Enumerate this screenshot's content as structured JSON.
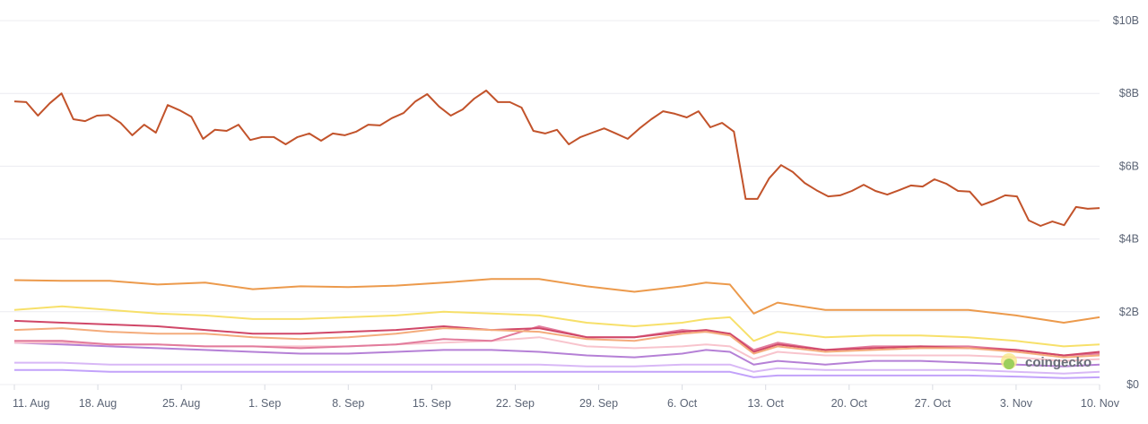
{
  "chart_data": {
    "type": "line",
    "title": "",
    "xlabel": "",
    "ylabel": "",
    "ylim": [
      0,
      10
    ],
    "y_unit": "billion USD",
    "y_ticks": [
      {
        "value": 0,
        "label": "$0"
      },
      {
        "value": 2,
        "label": "$2B"
      },
      {
        "value": 4,
        "label": "$4B"
      },
      {
        "value": 6,
        "label": "$6B"
      },
      {
        "value": 8,
        "label": "$8B"
      },
      {
        "value": 10,
        "label": "$10B"
      }
    ],
    "x_range_days": [
      0,
      91
    ],
    "x_ticks": [
      {
        "day": 0,
        "label": "11. Aug"
      },
      {
        "day": 7,
        "label": "18. Aug"
      },
      {
        "day": 14,
        "label": "25. Aug"
      },
      {
        "day": 21,
        "label": "1. Sep"
      },
      {
        "day": 28,
        "label": "8. Sep"
      },
      {
        "day": 35,
        "label": "15. Sep"
      },
      {
        "day": 42,
        "label": "22. Sep"
      },
      {
        "day": 49,
        "label": "29. Sep"
      },
      {
        "day": 56,
        "label": "6. Oct"
      },
      {
        "day": 63,
        "label": "13. Oct"
      },
      {
        "day": 70,
        "label": "20. Oct"
      },
      {
        "day": 77,
        "label": "27. Oct"
      },
      {
        "day": 84,
        "label": "3. Nov"
      },
      {
        "day": 91,
        "label": "10. Nov"
      }
    ],
    "grid": true,
    "watermark": "coingecko",
    "sparse_x_days": [
      0,
      4,
      8,
      12,
      16,
      20,
      24,
      28,
      32,
      36,
      40,
      44,
      48,
      52,
      56,
      58,
      60,
      62,
      64,
      68,
      72,
      76,
      80,
      84,
      88,
      91
    ],
    "series": [
      {
        "color": "#c2532b",
        "dense": true,
        "values": [
          7.78,
          7.76,
          7.39,
          7.73,
          8.0,
          7.29,
          7.24,
          7.39,
          7.41,
          7.19,
          6.85,
          7.14,
          6.92,
          7.68,
          7.54,
          7.36,
          6.75,
          7.0,
          6.97,
          7.14,
          6.72,
          6.8,
          6.8,
          6.6,
          6.8,
          6.9,
          6.7,
          6.9,
          6.85,
          6.95,
          7.14,
          7.12,
          7.32,
          7.46,
          7.78,
          7.98,
          7.64,
          7.39,
          7.56,
          7.86,
          8.08,
          7.76,
          7.76,
          7.61,
          6.97,
          6.9,
          7.0,
          6.6,
          6.8,
          6.92,
          7.04,
          6.9,
          6.75,
          7.04,
          7.29,
          7.51,
          7.44,
          7.34,
          7.51,
          7.07,
          7.19,
          6.95,
          5.1,
          5.1,
          5.67,
          6.03,
          5.84,
          5.54,
          5.34,
          5.17,
          5.2,
          5.32,
          5.49,
          5.32,
          5.22,
          5.34,
          5.47,
          5.44,
          5.64,
          5.52,
          5.32,
          5.3,
          4.93,
          5.05,
          5.2,
          5.17,
          4.51,
          4.36,
          4.48,
          4.38,
          4.88,
          4.83,
          4.85
        ]
      },
      {
        "color": "#ec9a4c",
        "values": [
          2.87,
          2.85,
          2.85,
          2.75,
          2.8,
          2.62,
          2.7,
          2.68,
          2.72,
          2.8,
          2.9,
          2.9,
          2.7,
          2.55,
          2.7,
          2.8,
          2.75,
          1.95,
          2.25,
          2.05,
          2.05,
          2.05,
          2.05,
          1.9,
          1.7,
          1.85
        ]
      },
      {
        "color": "#f7e06a",
        "values": [
          2.05,
          2.15,
          2.05,
          1.95,
          1.9,
          1.8,
          1.8,
          1.85,
          1.9,
          2.0,
          1.95,
          1.9,
          1.7,
          1.6,
          1.7,
          1.8,
          1.85,
          1.2,
          1.45,
          1.3,
          1.35,
          1.35,
          1.3,
          1.2,
          1.05,
          1.1
        ]
      },
      {
        "color": "#f4ac7c",
        "values": [
          1.5,
          1.55,
          1.45,
          1.4,
          1.4,
          1.3,
          1.25,
          1.3,
          1.4,
          1.55,
          1.5,
          1.45,
          1.25,
          1.2,
          1.4,
          1.45,
          1.35,
          0.85,
          1.05,
          0.9,
          0.95,
          1.0,
          1.0,
          0.9,
          0.75,
          0.8
        ]
      },
      {
        "color": "#d04768",
        "values": [
          1.75,
          1.7,
          1.65,
          1.6,
          1.5,
          1.4,
          1.4,
          1.45,
          1.5,
          1.6,
          1.5,
          1.55,
          1.3,
          1.3,
          1.45,
          1.5,
          1.4,
          0.9,
          1.1,
          0.95,
          1.0,
          1.05,
          1.0,
          0.95,
          0.8,
          0.9
        ]
      },
      {
        "color": "#e27b9c",
        "values": [
          1.2,
          1.2,
          1.1,
          1.1,
          1.05,
          1.05,
          1.0,
          1.05,
          1.1,
          1.25,
          1.2,
          1.6,
          1.3,
          1.3,
          1.5,
          1.45,
          1.4,
          0.95,
          1.15,
          0.95,
          1.05,
          1.05,
          1.05,
          0.95,
          0.8,
          0.85
        ]
      },
      {
        "color": "#f8c4cd",
        "values": [
          1.15,
          1.15,
          1.1,
          1.1,
          1.05,
          1.05,
          1.05,
          1.05,
          1.1,
          1.15,
          1.2,
          1.3,
          1.05,
          1.0,
          1.05,
          1.1,
          1.05,
          0.7,
          0.9,
          0.8,
          0.8,
          0.8,
          0.8,
          0.75,
          0.65,
          0.7
        ]
      },
      {
        "color": "#b580d6",
        "values": [
          1.15,
          1.1,
          1.05,
          1.0,
          0.95,
          0.9,
          0.85,
          0.85,
          0.9,
          0.95,
          0.95,
          0.9,
          0.8,
          0.75,
          0.85,
          0.95,
          0.9,
          0.55,
          0.65,
          0.55,
          0.65,
          0.65,
          0.6,
          0.55,
          0.5,
          0.55
        ]
      },
      {
        "color": "#d8b8f6",
        "values": [
          0.6,
          0.6,
          0.55,
          0.55,
          0.55,
          0.55,
          0.55,
          0.55,
          0.55,
          0.55,
          0.55,
          0.55,
          0.5,
          0.5,
          0.55,
          0.55,
          0.55,
          0.35,
          0.45,
          0.4,
          0.4,
          0.4,
          0.4,
          0.35,
          0.3,
          0.35
        ]
      },
      {
        "color": "#c2a2fa",
        "values": [
          0.4,
          0.4,
          0.35,
          0.35,
          0.35,
          0.35,
          0.35,
          0.35,
          0.35,
          0.35,
          0.35,
          0.35,
          0.35,
          0.35,
          0.35,
          0.35,
          0.35,
          0.2,
          0.25,
          0.25,
          0.25,
          0.25,
          0.25,
          0.22,
          0.18,
          0.2
        ]
      }
    ]
  }
}
